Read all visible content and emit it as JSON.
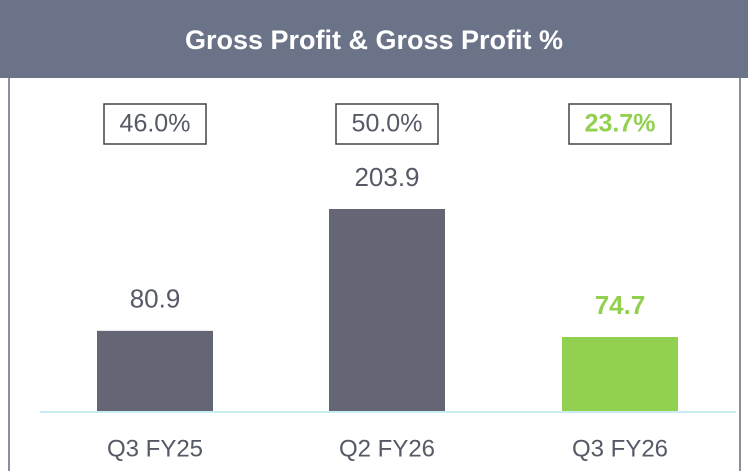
{
  "chart_data": {
    "type": "bar",
    "title": "Gross Profit & Gross Profit %",
    "categories": [
      "Q3 FY25",
      "Q2 FY26",
      "Q3 FY26"
    ],
    "values": [
      80.9,
      203.9,
      74.7
    ],
    "colors": [
      "#646675",
      "#646675",
      "#92d050"
    ],
    "annotations": [
      "46.0%",
      "50.0%",
      "23.7%"
    ]
  }
}
